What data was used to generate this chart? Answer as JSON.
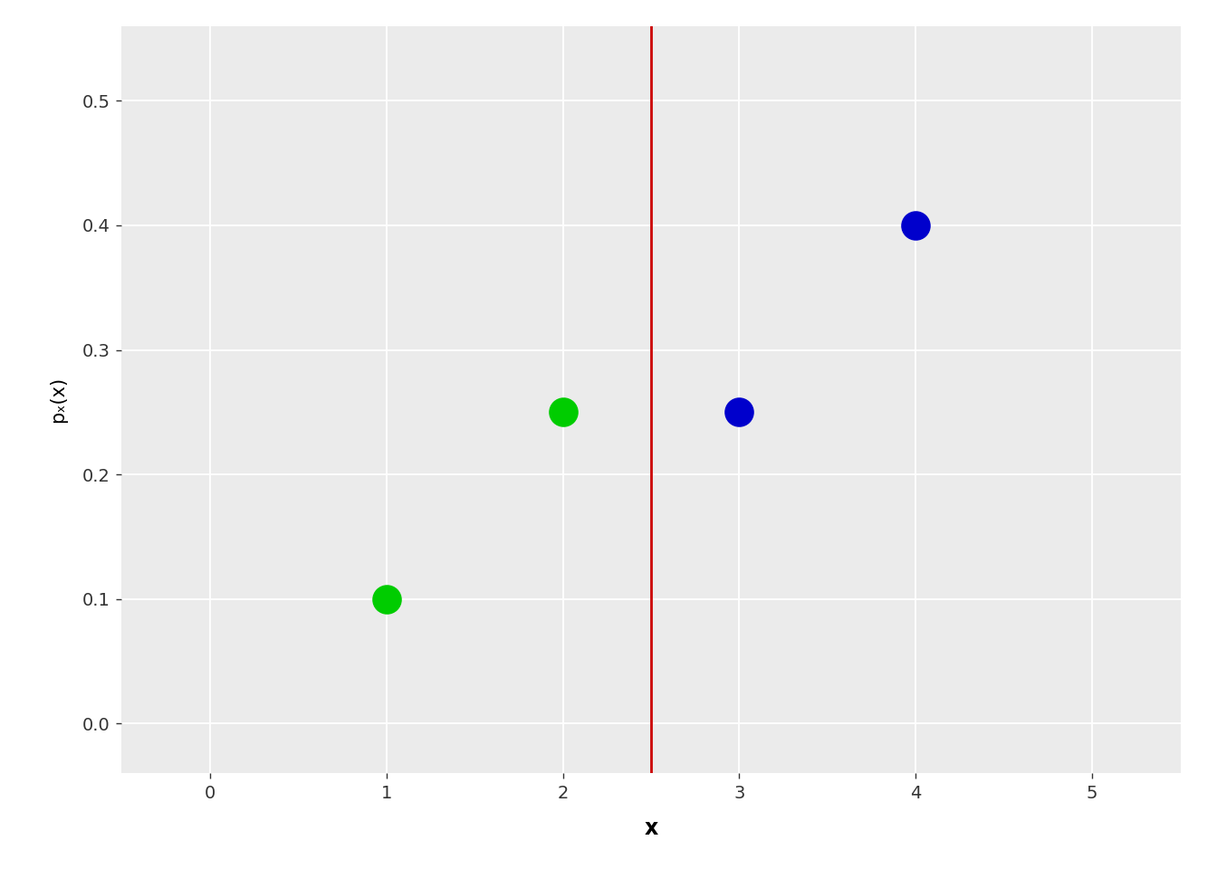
{
  "title": "",
  "xlabel": "x",
  "ylabel": "pₓ(x)",
  "xlim": [
    -0.5,
    5.5
  ],
  "ylim": [
    -0.04,
    0.56
  ],
  "xticks": [
    0,
    1,
    2,
    3,
    4,
    5
  ],
  "yticks": [
    0.0,
    0.1,
    0.2,
    0.3,
    0.4,
    0.5
  ],
  "points_x": [
    1,
    2,
    3,
    4
  ],
  "points_y": [
    0.1,
    0.25,
    0.25,
    0.4
  ],
  "point_colors": [
    "#00CC00",
    "#00CC00",
    "#0000CC",
    "#0000CC"
  ],
  "point_size": 220,
  "vline_x": 2.5,
  "vline_color": "#CC0000",
  "vline_lw": 2.0,
  "plot_bg_color": "#EBEBEB",
  "fig_bg_color": "#FFFFFF",
  "grid_color": "#FFFFFF",
  "xlabel_fontsize": 17,
  "ylabel_fontsize": 15,
  "tick_fontsize": 14,
  "tick_color": "#333333"
}
